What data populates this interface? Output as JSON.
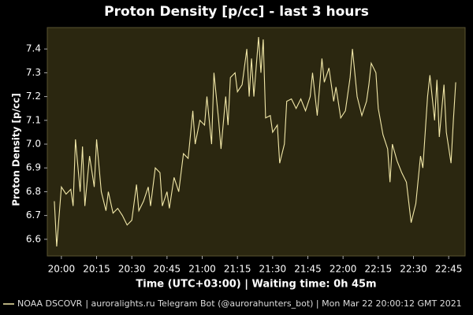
{
  "chart_data": {
    "type": "line",
    "title": "Proton Density [p/cc] - last 3 hours",
    "xlabel": "Time (UTC+03:00) | Waiting time: 0h 45m",
    "ylabel": "Proton Density [p/cc]",
    "footer": "| auroralights.ru Telegram Bot (@aurorahunters_bot) | Mon Mar 22 20:00:12 GMT 2021",
    "xlim": [
      "19:54",
      "22:52"
    ],
    "xticks": [
      "20:00",
      "20:15",
      "20:30",
      "20:45",
      "21:00",
      "21:15",
      "21:30",
      "21:45",
      "22:00",
      "22:15",
      "22:30",
      "22:45"
    ],
    "ylim": [
      6.53,
      7.49
    ],
    "yticks": [
      6.6,
      6.7,
      6.8,
      6.9,
      {
        "value": 7,
        "label": "7.0"
      },
      7.1,
      7.2,
      7.3,
      7.4
    ],
    "grid": false,
    "x": [
      "19:57",
      "19:58",
      "20:00",
      "20:02",
      "20:04",
      "20:05",
      "20:06",
      "20:08",
      "20:09",
      "20:10",
      "20:12",
      "20:14",
      "20:15",
      "20:17",
      "20:19",
      "20:20",
      "20:22",
      "20:24",
      "20:26",
      "20:28",
      "20:30",
      "20:32",
      "20:33",
      "20:35",
      "20:37",
      "20:38",
      "20:40",
      "20:42",
      "20:43",
      "20:45",
      "20:46",
      "20:48",
      "20:50",
      "20:52",
      "20:54",
      "20:56",
      "20:57",
      "20:59",
      "21:01",
      "21:02",
      "21:04",
      "21:05",
      "21:07",
      "21:08",
      "21:10",
      "21:11",
      "21:12",
      "21:14",
      "21:15",
      "21:17",
      "21:19",
      "21:20",
      "21:21",
      "21:22",
      "21:24",
      "21:25",
      "21:26",
      "21:27",
      "21:29",
      "21:30",
      "21:32",
      "21:33",
      "21:35",
      "21:36",
      "21:38",
      "21:40",
      "21:42",
      "21:44",
      "21:46",
      "21:47",
      "21:49",
      "21:51",
      "21:52",
      "21:54",
      "21:56",
      "21:57",
      "21:59",
      "22:01",
      "22:03",
      "22:04",
      "22:06",
      "22:08",
      "22:10",
      "22:11",
      "22:12",
      "22:14",
      "22:15",
      "22:17",
      "22:19",
      "22:20",
      "22:21",
      "22:23",
      "22:25",
      "22:27",
      "22:29",
      "22:31",
      "22:33",
      "22:34",
      "22:36",
      "22:37",
      "22:39",
      "22:40",
      "22:41",
      "22:43",
      "22:44",
      "22:46",
      "22:47",
      "22:48"
    ],
    "series": [
      {
        "name": "NOAA DSCOVR",
        "color": "#f2e8a8",
        "values": [
          6.76,
          6.57,
          6.82,
          6.79,
          6.81,
          6.74,
          7.02,
          6.8,
          6.99,
          6.74,
          6.95,
          6.82,
          7.02,
          6.8,
          6.72,
          6.8,
          6.71,
          6.73,
          6.7,
          6.66,
          6.68,
          6.83,
          6.72,
          6.76,
          6.82,
          6.74,
          6.9,
          6.88,
          6.74,
          6.8,
          6.73,
          6.86,
          6.8,
          6.96,
          6.94,
          7.14,
          7.0,
          7.1,
          7.08,
          7.2,
          7.0,
          7.3,
          7.1,
          6.98,
          7.2,
          7.08,
          7.28,
          7.3,
          7.22,
          7.25,
          7.4,
          7.2,
          7.36,
          7.2,
          7.45,
          7.3,
          7.44,
          7.11,
          7.12,
          7.05,
          7.08,
          6.92,
          7.0,
          7.18,
          7.19,
          7.15,
          7.19,
          7.14,
          7.2,
          7.3,
          7.12,
          7.36,
          7.26,
          7.32,
          7.18,
          7.24,
          7.11,
          7.14,
          7.28,
          7.4,
          7.2,
          7.12,
          7.18,
          7.25,
          7.34,
          7.3,
          7.15,
          7.04,
          6.98,
          6.84,
          7.0,
          6.93,
          6.88,
          6.84,
          6.67,
          6.75,
          6.95,
          6.9,
          7.2,
          7.29,
          7.1,
          7.27,
          7.03,
          7.25,
          7.05,
          6.92,
          7.1,
          7.26
        ]
      }
    ]
  }
}
